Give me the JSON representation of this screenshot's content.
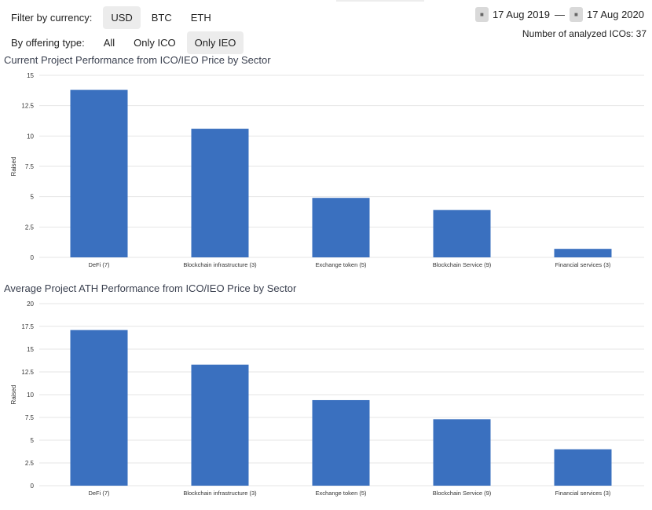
{
  "filters": {
    "currency_label": "Filter by currency:",
    "currency_options": [
      "USD",
      "BTC",
      "ETH"
    ],
    "currency_selected": "USD",
    "offering_label": "By offering type:",
    "offering_options": [
      "All",
      "Only ICO",
      "Only IEO"
    ],
    "offering_selected": "Only IEO"
  },
  "date_range": {
    "start": "17 Aug 2019",
    "separator": "—",
    "end": "17 Aug 2020",
    "calendar_icon": "calendar-icon"
  },
  "analyzed_count": "Number of analyzed ICOs: 37",
  "chart_data": [
    {
      "type": "bar",
      "title": "Current Project Performance from ICO/IEO Price by Sector",
      "categories": [
        "DeFi (7)",
        "Blockchain infrastructure (3)",
        "Exchange token (5)",
        "Blockchain Service (9)",
        "Financial services (3)"
      ],
      "values": [
        13.8,
        10.6,
        4.9,
        3.9,
        0.7
      ],
      "ylabel": "Raised",
      "xlabel": "",
      "ylim": [
        0,
        15
      ],
      "yticks": [
        "0",
        "2.5",
        "5",
        "7.5",
        "10",
        "12.5",
        "15"
      ],
      "color": "#3a70bf",
      "grid": true
    },
    {
      "type": "bar",
      "title": "Average Project ATH Performance from ICO/IEO Price by Sector",
      "categories": [
        "DeFi (7)",
        "Blockchain infrastructure (3)",
        "Exchange token (5)",
        "Blockchain Service (9)",
        "Financial services (3)"
      ],
      "values": [
        17.1,
        13.3,
        9.4,
        7.3,
        4.0
      ],
      "ylabel": "Raised",
      "xlabel": "",
      "ylim": [
        0,
        20
      ],
      "yticks": [
        "0",
        "2.5",
        "5",
        "7.5",
        "10",
        "12.5",
        "15",
        "17.5",
        "20"
      ],
      "color": "#3a70bf",
      "grid": true
    }
  ]
}
